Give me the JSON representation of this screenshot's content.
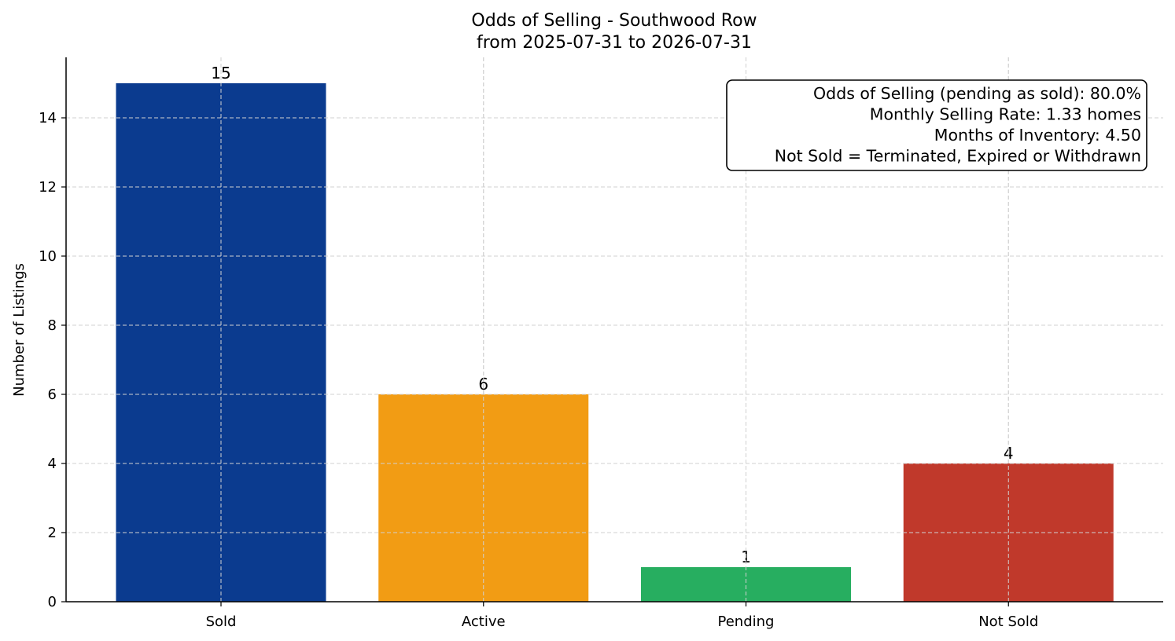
{
  "chart_data": {
    "type": "bar",
    "title": "Odds of Selling - Southwood Row",
    "subtitle": "from 2025-07-31 to 2026-07-31",
    "xlabel": "",
    "ylabel": "Number of Listings",
    "categories": [
      "Sold",
      "Active",
      "Pending",
      "Not Sold"
    ],
    "values": [
      15,
      6,
      1,
      4
    ],
    "data_labels": [
      "15",
      "6",
      "1",
      "4"
    ],
    "colors": [
      "#0b3b8f",
      "#f29c14",
      "#27ae60",
      "#c0392b"
    ],
    "ylim": [
      0,
      15.75
    ],
    "yticks": [
      0,
      2,
      4,
      6,
      8,
      10,
      12,
      14
    ],
    "grid": true,
    "legend": "none",
    "stats_box_position": "top-right",
    "stats_box": [
      "Odds of Selling (pending as sold): 80.0%",
      "Monthly Selling Rate: 1.33 homes",
      "Months of Inventory: 4.50",
      "Not Sold = Terminated, Expired or Withdrawn"
    ]
  }
}
